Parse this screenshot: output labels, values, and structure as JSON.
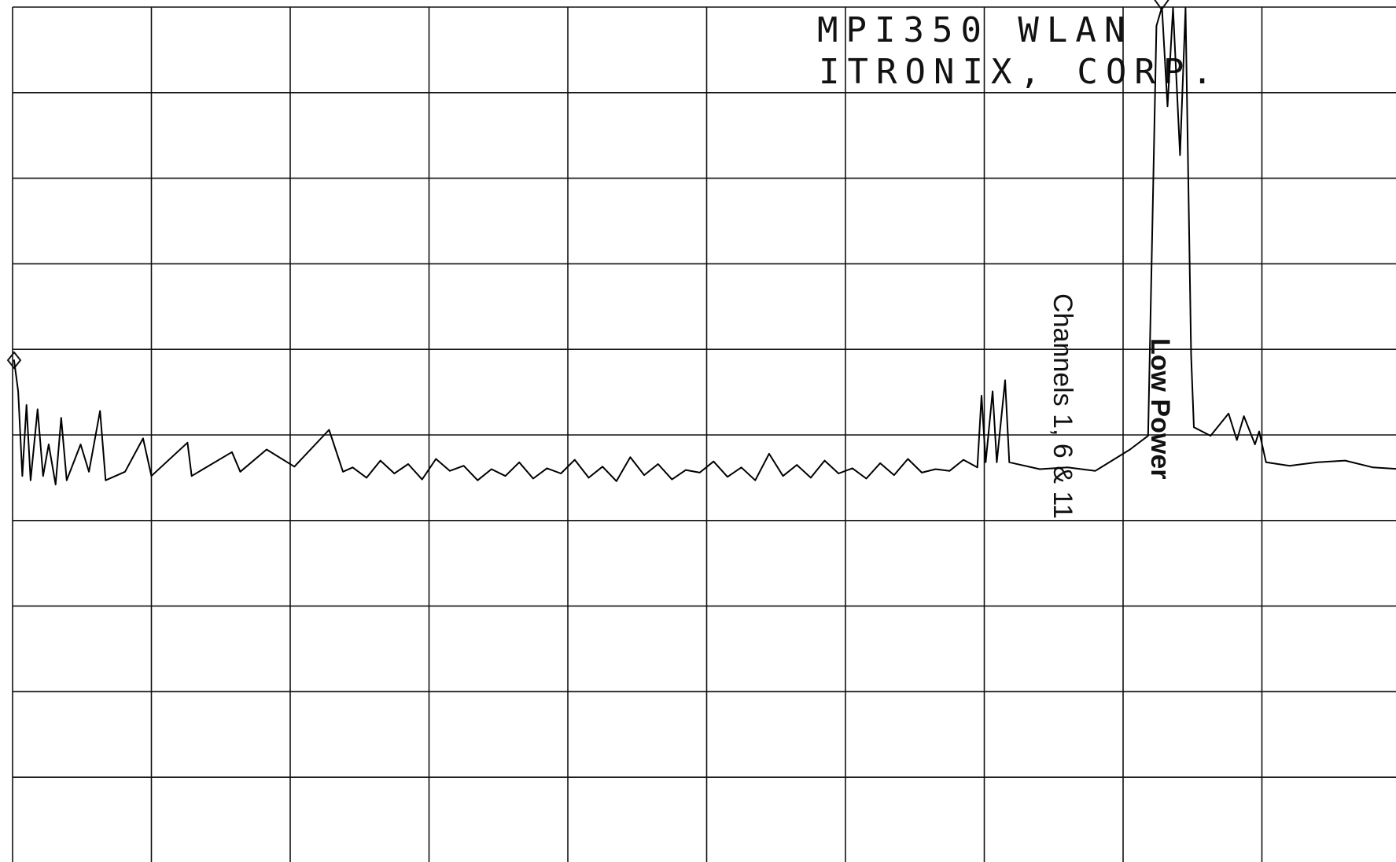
{
  "chart_data": {
    "type": "line",
    "title_lines": [
      "MPI350 WLAN",
      "ITRONIX, CORP."
    ],
    "annotations": [
      "Channels 1, 6 & 11",
      "Low Power"
    ],
    "xlim": [
      0,
      10
    ],
    "ylim": [
      0,
      10
    ],
    "xticks": [
      0,
      1,
      2,
      3,
      4,
      5,
      6,
      7,
      8,
      9,
      10
    ],
    "yticks": [
      0,
      1,
      2,
      3,
      4,
      5,
      6,
      7,
      8,
      9,
      10
    ],
    "grid": true,
    "series": [
      {
        "color": "#000000",
        "x": [
          0.01,
          0.04,
          0.07,
          0.1,
          0.13,
          0.18,
          0.22,
          0.26,
          0.31,
          0.35,
          0.39,
          0.49,
          0.55,
          0.63,
          0.67,
          0.81,
          0.94,
          1.0,
          1.26,
          1.29,
          1.58,
          1.64,
          1.83,
          2.03,
          2.28,
          2.38,
          2.45,
          2.55,
          2.65,
          2.75,
          2.85,
          2.95,
          3.05,
          3.15,
          3.25,
          3.35,
          3.45,
          3.55,
          3.65,
          3.75,
          3.85,
          3.95,
          4.05,
          4.15,
          4.25,
          4.35,
          4.45,
          4.55,
          4.65,
          4.75,
          4.85,
          4.95,
          5.05,
          5.15,
          5.25,
          5.35,
          5.45,
          5.55,
          5.65,
          5.75,
          5.85,
          5.95,
          6.05,
          6.15,
          6.25,
          6.35,
          6.45,
          6.55,
          6.65,
          6.75,
          6.85,
          6.95,
          6.98,
          7.01,
          7.06,
          7.09,
          7.15,
          7.18,
          7.4,
          7.6,
          7.8,
          8.05,
          8.18,
          8.24,
          8.28,
          8.32,
          8.36,
          8.41,
          8.45,
          8.49,
          8.51,
          8.63,
          8.76,
          8.82,
          8.87,
          8.95,
          8.98,
          9.03,
          9.2,
          9.4,
          9.6,
          9.8,
          10.0
        ],
        "values": [
          5.88,
          5.51,
          4.52,
          5.35,
          4.47,
          5.3,
          4.52,
          4.89,
          4.42,
          5.2,
          4.47,
          4.89,
          4.57,
          5.28,
          4.47,
          4.57,
          4.96,
          4.52,
          4.91,
          4.52,
          4.8,
          4.57,
          4.83,
          4.63,
          5.06,
          4.57,
          4.62,
          4.5,
          4.7,
          4.55,
          4.66,
          4.48,
          4.72,
          4.58,
          4.64,
          4.47,
          4.6,
          4.52,
          4.68,
          4.49,
          4.61,
          4.55,
          4.71,
          4.5,
          4.63,
          4.46,
          4.74,
          4.53,
          4.66,
          4.48,
          4.59,
          4.56,
          4.69,
          4.51,
          4.62,
          4.47,
          4.78,
          4.52,
          4.65,
          4.5,
          4.7,
          4.55,
          4.61,
          4.49,
          4.67,
          4.53,
          4.72,
          4.56,
          4.6,
          4.58,
          4.71,
          4.62,
          5.46,
          4.68,
          5.51,
          4.68,
          5.64,
          4.68,
          4.6,
          4.62,
          4.58,
          4.83,
          4.99,
          9.78,
          10.0,
          8.84,
          9.99,
          8.27,
          9.99,
          5.93,
          5.09,
          4.99,
          5.25,
          4.94,
          5.22,
          4.89,
          5.04,
          4.68,
          4.64,
          4.68,
          4.7,
          4.62,
          4.6
        ]
      }
    ]
  }
}
